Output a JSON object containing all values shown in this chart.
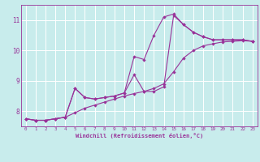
{
  "xlabel": "Windchill (Refroidissement éolien,°C)",
  "bg_color": "#c8ecec",
  "grid_color": "#ffffff",
  "line_color": "#993399",
  "xlim": [
    -0.5,
    23.5
  ],
  "ylim": [
    7.5,
    11.5
  ],
  "yticks": [
    8,
    9,
    10,
    11
  ],
  "xticks": [
    0,
    1,
    2,
    3,
    4,
    5,
    6,
    7,
    8,
    9,
    10,
    11,
    12,
    13,
    14,
    15,
    16,
    17,
    18,
    19,
    20,
    21,
    22,
    23
  ],
  "line1": [
    7.75,
    7.7,
    7.7,
    7.75,
    7.8,
    8.75,
    8.45,
    8.4,
    8.45,
    8.5,
    8.6,
    9.8,
    9.7,
    10.5,
    11.1,
    11.2,
    10.85,
    10.6,
    10.45,
    10.35,
    10.35,
    10.35,
    10.35,
    10.3
  ],
  "line2": [
    7.75,
    7.7,
    7.7,
    7.75,
    7.8,
    8.75,
    8.45,
    8.4,
    8.45,
    8.5,
    8.6,
    9.2,
    8.65,
    8.65,
    8.8,
    11.15,
    10.85,
    10.6,
    10.45,
    10.35,
    10.35,
    10.35,
    10.35,
    10.3
  ],
  "line3": [
    7.75,
    7.7,
    7.7,
    7.75,
    7.8,
    7.95,
    8.1,
    8.2,
    8.3,
    8.4,
    8.5,
    8.58,
    8.65,
    8.75,
    8.9,
    9.3,
    9.75,
    10.0,
    10.15,
    10.22,
    10.28,
    10.3,
    10.32,
    10.3
  ]
}
